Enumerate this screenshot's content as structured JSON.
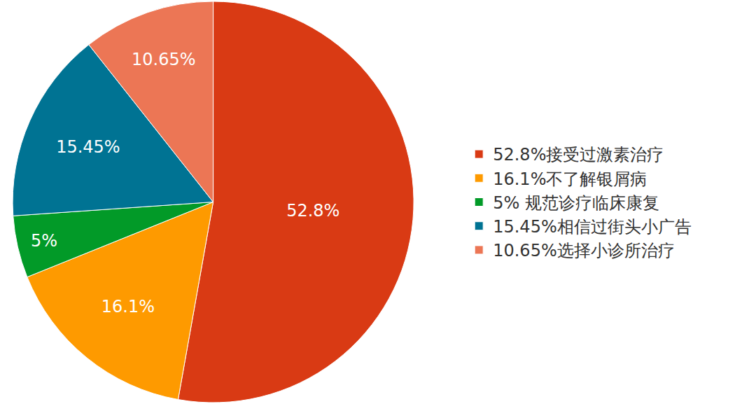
{
  "chart_data": {
    "type": "pie",
    "categories": [
      "52.8%接受过激素治疗",
      "16.1%不了解银屑病",
      "5% 规范诊疗临床康复",
      "15.45%相信过街头小广告",
      "10.65%选择小诊所治疗"
    ],
    "values": [
      52.8,
      16.1,
      5,
      15.45,
      10.65
    ],
    "value_labels": [
      "52.8%",
      "16.1%",
      "5%",
      "15.45%",
      "10.65%"
    ],
    "colors": [
      "#d93a14",
      "#fe9a00",
      "#029a28",
      "#007393",
      "#ec7655"
    ],
    "data_labels": true,
    "legend": "right"
  }
}
